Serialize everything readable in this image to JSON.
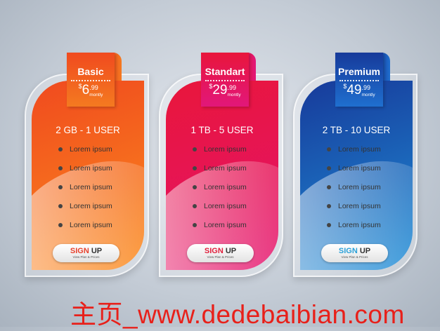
{
  "plans": [
    {
      "name": "Basic",
      "currency": "$",
      "price": "6",
      "cents": ".99",
      "period": "montly",
      "headline": "2 GB - 1 USER",
      "features": [
        "Lorem ipsum",
        "Lorem ipsum",
        "Lorem ipsum",
        "Lorem ipsum",
        "Lorem ipsum"
      ],
      "sign": "SIGN",
      "up": "UP",
      "sub": "View Plan & Prices",
      "colors": {
        "top": "#f04a1f",
        "bottom": "#fb8b1c",
        "tab": "#f47a20",
        "sign": "#e8412c"
      }
    },
    {
      "name": "Standart",
      "currency": "$",
      "price": "29",
      "cents": ".99",
      "period": "montly",
      "headline": "1 TB - 5 USER",
      "features": [
        "Lorem ipsum",
        "Lorem ipsum",
        "Lorem ipsum",
        "Lorem ipsum",
        "Lorem ipsum"
      ],
      "sign": "SIGN",
      "up": "UP",
      "sub": "View Plan & Prices",
      "colors": {
        "top": "#e8163b",
        "bottom": "#e5136e",
        "tab": "#e2177a",
        "sign": "#e0203c"
      }
    },
    {
      "name": "Premium",
      "currency": "$",
      "price": "49",
      "cents": ".99",
      "period": "montly",
      "headline": "2 TB - 10 USER",
      "features": [
        "Lorem ipsum",
        "Lorem ipsum",
        "Lorem ipsum",
        "Lorem ipsum",
        "Lorem ipsum"
      ],
      "sign": "SIGN",
      "up": "UP",
      "sub": "View Plan & Prices",
      "colors": {
        "top": "#173a9a",
        "bottom": "#1f8fd8",
        "tab": "#1f6fcf",
        "sign": "#2aa0d8"
      }
    }
  ],
  "watermark": "主页_www.dedebaibian.com"
}
